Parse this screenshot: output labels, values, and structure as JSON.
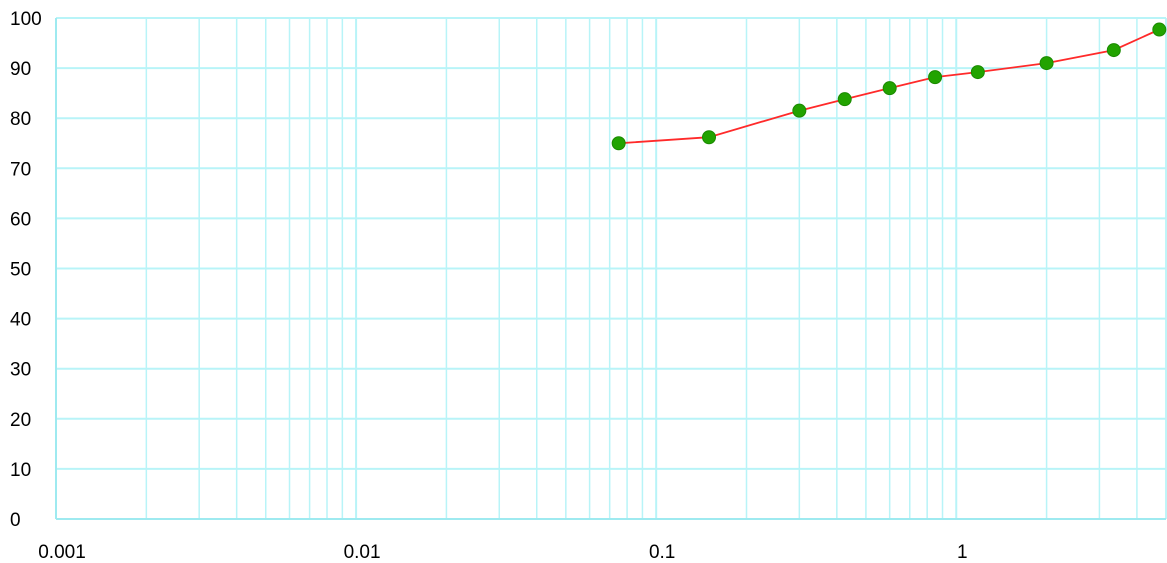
{
  "chart_data": {
    "type": "line",
    "x_scale": "log",
    "xlim": [
      0.001,
      5
    ],
    "ylim": [
      0,
      100
    ],
    "x_ticks": [
      {
        "value": 0.001,
        "label": "0.001"
      },
      {
        "value": 0.01,
        "label": "0.01"
      },
      {
        "value": 0.1,
        "label": "0.1"
      },
      {
        "value": 1,
        "label": "1"
      }
    ],
    "y_ticks": [
      {
        "value": 0,
        "label": "0"
      },
      {
        "value": 10,
        "label": "10"
      },
      {
        "value": 20,
        "label": "20"
      },
      {
        "value": 30,
        "label": "30"
      },
      {
        "value": 40,
        "label": "40"
      },
      {
        "value": 50,
        "label": "50"
      },
      {
        "value": 60,
        "label": "60"
      },
      {
        "value": 70,
        "label": "70"
      },
      {
        "value": 80,
        "label": "80"
      },
      {
        "value": 90,
        "label": "90"
      },
      {
        "value": 100,
        "label": "100"
      }
    ],
    "grid": true,
    "series": [
      {
        "points": [
          {
            "x": 0.075,
            "y": 75
          },
          {
            "x": 0.15,
            "y": 76.2
          },
          {
            "x": 0.3,
            "y": 81.5
          },
          {
            "x": 0.425,
            "y": 83.8
          },
          {
            "x": 0.6,
            "y": 86
          },
          {
            "x": 0.85,
            "y": 88.2
          },
          {
            "x": 1.18,
            "y": 89.2
          },
          {
            "x": 2,
            "y": 91
          },
          {
            "x": 3.35,
            "y": 93.6
          },
          {
            "x": 4.75,
            "y": 97.7
          }
        ]
      }
    ],
    "colors": {
      "grid": "#b8f4f8",
      "axis": "#9eeaf0",
      "line": "#ff2a2a",
      "marker": "#22a300"
    }
  }
}
